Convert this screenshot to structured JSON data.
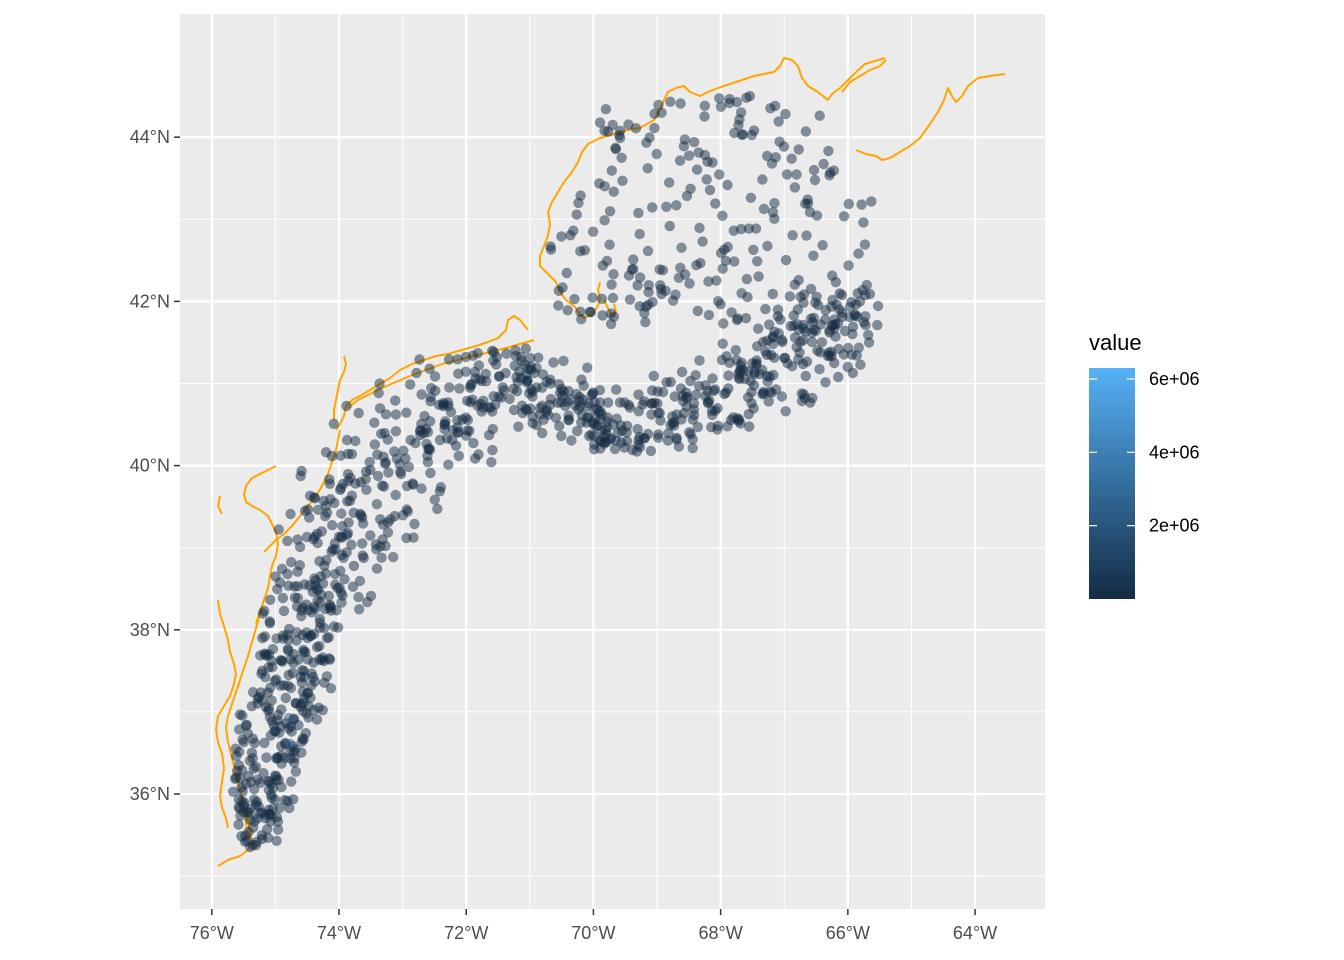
{
  "colors": {
    "panel_background": "#EBEBEB",
    "grid_line": "#FFFFFF",
    "coastline": "#FFA500",
    "point_low": "#132B43",
    "point_high": "#56B1F7",
    "tick_text": "#4D4D4D"
  },
  "map": {
    "x_axis_labels": [
      "76°W",
      "74°W",
      "72°W",
      "70°W",
      "68°W",
      "66°W",
      "64°W"
    ],
    "y_axis_labels": [
      "44°N",
      "42°N",
      "40°N",
      "38°N",
      "36°N"
    ],
    "xlim": [
      -76.5,
      -62.9
    ],
    "ylim": [
      34.6,
      45.5
    ],
    "x_ticks": [
      -76,
      -74,
      -72,
      -70,
      -68,
      -66,
      -64
    ],
    "y_ticks": [
      44,
      42,
      40,
      38,
      36
    ],
    "point_opacity": 0.5,
    "layers": [
      "coastline",
      "sample-points"
    ],
    "coastline_icon": "orange-coastline-line"
  },
  "legend": {
    "title": "value",
    "labels": [
      "6e+06",
      "4e+06",
      "2e+06"
    ],
    "label_values": [
      6000000,
      4000000,
      2000000
    ],
    "range": [
      0,
      6300000
    ],
    "placement": "right"
  }
}
